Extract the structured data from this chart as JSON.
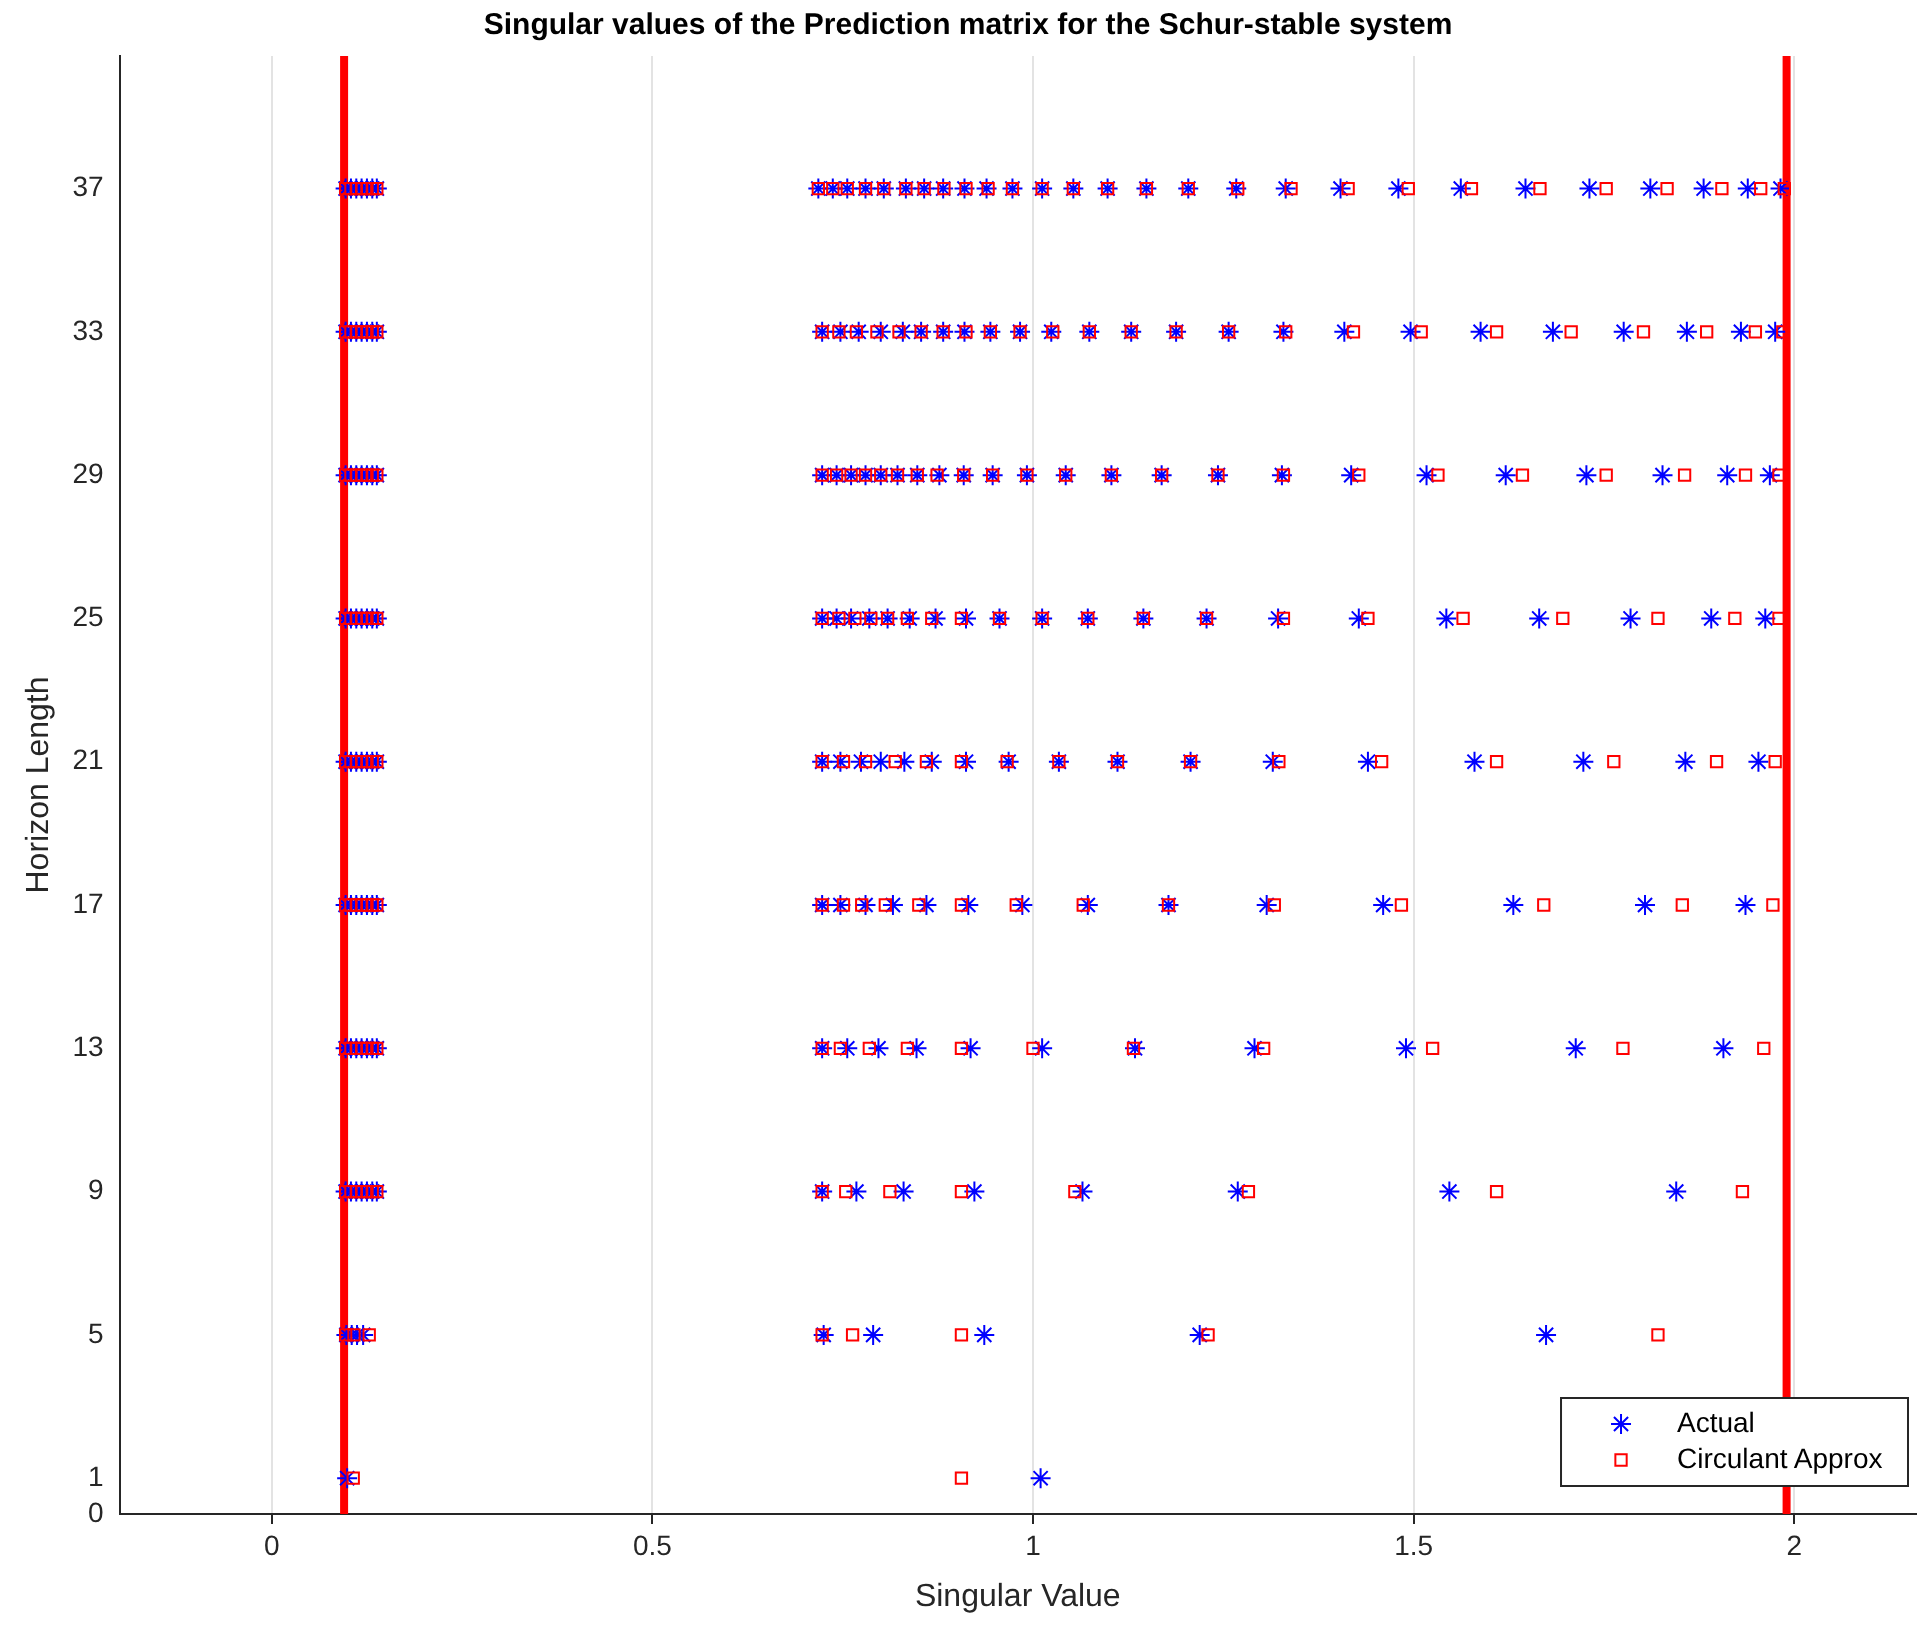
{
  "chart_data": {
    "type": "scatter",
    "title": "Singular values of the Prediction matrix for the Schur-stable system",
    "xlabel": "Singular Value",
    "ylabel": "Horizon Length",
    "xlim": [
      -0.2,
      2.16
    ],
    "ylim": [
      0,
      40.7
    ],
    "xticks": [
      0,
      0.5,
      1,
      1.5,
      2
    ],
    "yticks": [
      0,
      1,
      5,
      9,
      13,
      17,
      21,
      25,
      29,
      33,
      37
    ],
    "grid": "x",
    "legend": "bottom right",
    "ref_lines": [
      {
        "axis": "x",
        "value": 0.095,
        "color": "#ff0000"
      },
      {
        "axis": "x",
        "value": 1.99,
        "color": "#ff0000"
      }
    ],
    "series": [
      {
        "name": "Actual",
        "color": "#0000ff",
        "marker": "cross",
        "x": [
          0.099,
          1.01,
          0.098,
          0.105,
          0.112,
          0.12,
          0.725,
          0.79,
          0.936,
          1.219,
          1.674,
          0.097,
          0.104,
          0.111,
          0.118,
          0.125,
          0.132,
          0.138,
          0.723,
          0.768,
          0.83,
          0.923,
          1.065,
          1.269,
          1.547,
          1.845,
          0.097,
          0.104,
          0.111,
          0.118,
          0.125,
          0.132,
          0.138,
          0.723,
          0.756,
          0.797,
          0.847,
          0.918,
          1.012,
          1.134,
          1.291,
          1.49,
          1.713,
          1.907,
          0.097,
          0.104,
          0.111,
          0.118,
          0.125,
          0.132,
          0.138,
          0.723,
          0.747,
          0.78,
          0.816,
          0.86,
          0.915,
          0.986,
          1.072,
          1.178,
          1.307,
          1.46,
          1.631,
          1.804,
          1.936,
          0.097,
          0.104,
          0.111,
          0.118,
          0.125,
          0.132,
          0.138,
          0.723,
          0.747,
          0.774,
          0.8,
          0.831,
          0.867,
          0.912,
          0.968,
          1.034,
          1.111,
          1.207,
          1.315,
          1.44,
          1.58,
          1.723,
          1.857,
          1.953,
          0.097,
          0.104,
          0.111,
          0.118,
          0.125,
          0.132,
          0.138,
          0.723,
          0.742,
          0.761,
          0.785,
          0.809,
          0.838,
          0.872,
          0.912,
          0.956,
          1.012,
          1.072,
          1.145,
          1.228,
          1.322,
          1.428,
          1.543,
          1.665,
          1.785,
          1.891,
          1.962,
          0.097,
          0.104,
          0.111,
          0.118,
          0.125,
          0.132,
          0.138,
          0.723,
          0.742,
          0.761,
          0.78,
          0.8,
          0.822,
          0.848,
          0.877,
          0.909,
          0.947,
          0.992,
          1.043,
          1.103,
          1.169,
          1.243,
          1.327,
          1.418,
          1.517,
          1.621,
          1.727,
          1.827,
          1.912,
          1.968,
          0.097,
          0.104,
          0.111,
          0.118,
          0.125,
          0.132,
          0.138,
          0.723,
          0.747,
          0.771,
          0.8,
          0.829,
          0.853,
          0.882,
          0.91,
          0.944,
          0.983,
          1.024,
          1.074,
          1.129,
          1.188,
          1.257,
          1.329,
          1.409,
          1.496,
          1.588,
          1.683,
          1.776,
          1.859,
          1.93,
          1.975,
          0.097,
          0.104,
          0.111,
          0.118,
          0.125,
          0.132,
          0.138,
          0.718,
          0.737,
          0.756,
          0.78,
          0.804,
          0.833,
          0.857,
          0.882,
          0.91,
          0.939,
          0.973,
          1.012,
          1.053,
          1.098,
          1.149,
          1.204,
          1.267,
          1.332,
          1.404,
          1.48,
          1.562,
          1.647,
          1.731,
          1.811,
          1.881,
          1.939,
          1.982
        ],
        "values": [
          1,
          1,
          5,
          5,
          5,
          5,
          5,
          5,
          5,
          5,
          5,
          9,
          9,
          9,
          9,
          9,
          9,
          9,
          9,
          9,
          9,
          9,
          9,
          9,
          9,
          9,
          13,
          13,
          13,
          13,
          13,
          13,
          13,
          13,
          13,
          13,
          13,
          13,
          13,
          13,
          13,
          13,
          13,
          13,
          17,
          17,
          17,
          17,
          17,
          17,
          17,
          17,
          17,
          17,
          17,
          17,
          17,
          17,
          17,
          17,
          17,
          17,
          17,
          17,
          17,
          21,
          21,
          21,
          21,
          21,
          21,
          21,
          21,
          21,
          21,
          21,
          21,
          21,
          21,
          21,
          21,
          21,
          21,
          21,
          21,
          21,
          21,
          21,
          21,
          25,
          25,
          25,
          25,
          25,
          25,
          25,
          25,
          25,
          25,
          25,
          25,
          25,
          25,
          25,
          25,
          25,
          25,
          25,
          25,
          25,
          25,
          25,
          25,
          25,
          25,
          25,
          29,
          29,
          29,
          29,
          29,
          29,
          29,
          29,
          29,
          29,
          29,
          29,
          29,
          29,
          29,
          29,
          29,
          29,
          29,
          29,
          29,
          29,
          29,
          29,
          29,
          29,
          29,
          29,
          29,
          29,
          33,
          33,
          33,
          33,
          33,
          33,
          33,
          33,
          33,
          33,
          33,
          33,
          33,
          33,
          33,
          33,
          33,
          33,
          33,
          33,
          33,
          33,
          33,
          33,
          33,
          33,
          33,
          33,
          33,
          33,
          33,
          37,
          37,
          37,
          37,
          37,
          37,
          37,
          37,
          37,
          37,
          37,
          37,
          37,
          37,
          37,
          37,
          37,
          37,
          37,
          37,
          37,
          37,
          37,
          37,
          37,
          37,
          37,
          37,
          37,
          37,
          37,
          37,
          37,
          37
        ]
      },
      {
        "name": "Circulant Approx",
        "color": "#ff0000",
        "marker": "square",
        "x": [
          0.107,
          0.906,
          0.097,
          0.108,
          0.128,
          0.723,
          0.763,
          0.906,
          1.23,
          1.821,
          0.097,
          0.104,
          0.111,
          0.118,
          0.125,
          0.132,
          0.138,
          0.723,
          0.754,
          0.812,
          0.906,
          1.055,
          1.283,
          1.609,
          1.932,
          0.097,
          0.104,
          0.111,
          0.118,
          0.125,
          0.132,
          0.138,
          0.723,
          0.747,
          0.785,
          0.835,
          0.906,
          1.0,
          1.132,
          1.303,
          1.525,
          1.775,
          1.96,
          0.097,
          0.104,
          0.111,
          0.118,
          0.125,
          0.132,
          0.138,
          0.723,
          0.751,
          0.775,
          0.806,
          0.85,
          0.906,
          0.978,
          1.066,
          1.178,
          1.317,
          1.484,
          1.671,
          1.853,
          1.972,
          0.097,
          0.104,
          0.111,
          0.118,
          0.125,
          0.132,
          0.138,
          0.723,
          0.751,
          0.78,
          0.819,
          0.86,
          0.906,
          0.966,
          1.034,
          1.111,
          1.207,
          1.323,
          1.458,
          1.609,
          1.763,
          1.898,
          1.975,
          0.097,
          0.104,
          0.111,
          0.118,
          0.125,
          0.132,
          0.138,
          0.723,
          0.745,
          0.766,
          0.787,
          0.809,
          0.835,
          0.867,
          0.906,
          0.956,
          1.012,
          1.072,
          1.145,
          1.228,
          1.329,
          1.44,
          1.565,
          1.696,
          1.821,
          1.922,
          1.98,
          0.097,
          0.104,
          0.111,
          0.118,
          0.125,
          0.132,
          0.138,
          0.723,
          0.742,
          0.761,
          0.78,
          0.8,
          0.822,
          0.848,
          0.874,
          0.909,
          0.947,
          0.992,
          1.043,
          1.103,
          1.169,
          1.243,
          1.329,
          1.428,
          1.532,
          1.643,
          1.753,
          1.856,
          1.936,
          1.98,
          0.097,
          0.104,
          0.111,
          0.118,
          0.125,
          0.132,
          0.138,
          0.723,
          0.745,
          0.768,
          0.795,
          0.824,
          0.853,
          0.882,
          0.912,
          0.944,
          0.983,
          1.026,
          1.074,
          1.129,
          1.188,
          1.257,
          1.332,
          1.421,
          1.51,
          1.609,
          1.707,
          1.802,
          1.885,
          1.949,
          1.985,
          0.097,
          0.104,
          0.111,
          0.118,
          0.125,
          0.132,
          0.138,
          0.718,
          0.737,
          0.756,
          0.78,
          0.804,
          0.833,
          0.857,
          0.883,
          0.912,
          0.941,
          0.973,
          1.012,
          1.053,
          1.098,
          1.149,
          1.204,
          1.269,
          1.339,
          1.414,
          1.493,
          1.576,
          1.666,
          1.753,
          1.833,
          1.905,
          1.956,
          1.987
        ],
        "values": [
          1,
          1,
          5,
          5,
          5,
          5,
          5,
          5,
          5,
          5,
          9,
          9,
          9,
          9,
          9,
          9,
          9,
          9,
          9,
          9,
          9,
          9,
          9,
          9,
          9,
          13,
          13,
          13,
          13,
          13,
          13,
          13,
          13,
          13,
          13,
          13,
          13,
          13,
          13,
          13,
          13,
          13,
          13,
          17,
          17,
          17,
          17,
          17,
          17,
          17,
          17,
          17,
          17,
          17,
          17,
          17,
          17,
          17,
          17,
          17,
          17,
          17,
          17,
          17,
          21,
          21,
          21,
          21,
          21,
          21,
          21,
          21,
          21,
          21,
          21,
          21,
          21,
          21,
          21,
          21,
          21,
          21,
          21,
          21,
          21,
          21,
          21,
          25,
          25,
          25,
          25,
          25,
          25,
          25,
          25,
          25,
          25,
          25,
          25,
          25,
          25,
          25,
          25,
          25,
          25,
          25,
          25,
          25,
          25,
          25,
          25,
          25,
          25,
          25,
          29,
          29,
          29,
          29,
          29,
          29,
          29,
          29,
          29,
          29,
          29,
          29,
          29,
          29,
          29,
          29,
          29,
          29,
          29,
          29,
          29,
          29,
          29,
          29,
          29,
          29,
          29,
          29,
          29,
          29,
          33,
          33,
          33,
          33,
          33,
          33,
          33,
          33,
          33,
          33,
          33,
          33,
          33,
          33,
          33,
          33,
          33,
          33,
          33,
          33,
          33,
          33,
          33,
          33,
          33,
          33,
          33,
          33,
          33,
          33,
          33,
          37,
          37,
          37,
          37,
          37,
          37,
          37,
          37,
          37,
          37,
          37,
          37,
          37,
          37,
          37,
          37,
          37,
          37,
          37,
          37,
          37,
          37,
          37,
          37,
          37,
          37,
          37,
          37,
          37,
          37,
          37,
          37,
          37,
          37
        ]
      }
    ]
  }
}
